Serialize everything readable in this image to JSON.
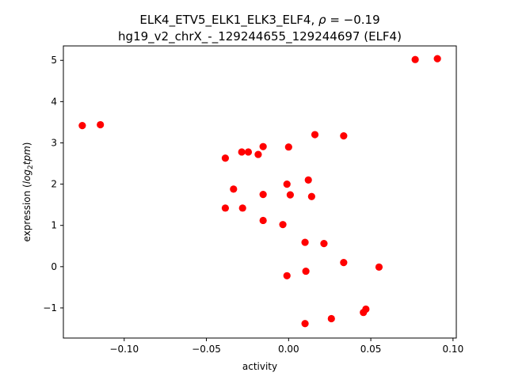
{
  "chart_data": {
    "type": "scatter",
    "title_line1_prefix": "ELK4_ETV5_ELK1_ELK3_ELF4, ",
    "title_rho_symbol": "ρ",
    "title_rho_value": " = −0.19",
    "title_line2": "hg19_v2_chrX_-_129244655_129244697 (ELF4)",
    "xlabel": "activity",
    "ylabel_prefix": "expression (",
    "ylabel_log": "log",
    "ylabel_sub": "2",
    "ylabel_tpm": "tpm",
    "ylabel_suffix": ")",
    "xlim": [
      -0.137,
      0.102
    ],
    "ylim": [
      -1.73,
      5.35
    ],
    "xticks": [
      -0.1,
      -0.05,
      0.0,
      0.05,
      0.1
    ],
    "xtick_labels": [
      "−0.10",
      "−0.05",
      "0.00",
      "0.05",
      "0.10"
    ],
    "yticks": [
      -1,
      0,
      1,
      2,
      3,
      4,
      5
    ],
    "ytick_labels": [
      "−1",
      "0",
      "1",
      "2",
      "3",
      "4",
      "5"
    ],
    "grid": false,
    "marker_color": "#ff0000",
    "points": [
      {
        "x": -0.1255,
        "y": 3.42
      },
      {
        "x": -0.1145,
        "y": 3.44
      },
      {
        "x": -0.0385,
        "y": 2.63
      },
      {
        "x": -0.0385,
        "y": 1.42
      },
      {
        "x": -0.0335,
        "y": 1.88
      },
      {
        "x": -0.0285,
        "y": 2.78
      },
      {
        "x": -0.028,
        "y": 1.42
      },
      {
        "x": -0.0245,
        "y": 2.78
      },
      {
        "x": -0.0185,
        "y": 2.72
      },
      {
        "x": -0.0155,
        "y": 2.91
      },
      {
        "x": -0.0155,
        "y": 1.75
      },
      {
        "x": -0.0155,
        "y": 1.12
      },
      {
        "x": -0.0035,
        "y": 1.02
      },
      {
        "x": -0.001,
        "y": 2.0
      },
      {
        "x": -0.001,
        "y": -0.22
      },
      {
        "x": 0.0,
        "y": 2.9
      },
      {
        "x": 0.001,
        "y": 1.74
      },
      {
        "x": 0.01,
        "y": 0.59
      },
      {
        "x": 0.01,
        "y": -1.38
      },
      {
        "x": 0.0105,
        "y": -0.11
      },
      {
        "x": 0.012,
        "y": 2.1
      },
      {
        "x": 0.014,
        "y": 1.7
      },
      {
        "x": 0.016,
        "y": 3.2
      },
      {
        "x": 0.0215,
        "y": 0.56
      },
      {
        "x": 0.026,
        "y": -1.26
      },
      {
        "x": 0.0335,
        "y": 3.17
      },
      {
        "x": 0.0335,
        "y": 0.1
      },
      {
        "x": 0.0455,
        "y": -1.11
      },
      {
        "x": 0.047,
        "y": -1.03
      },
      {
        "x": 0.055,
        "y": -0.01
      },
      {
        "x": 0.077,
        "y": 5.02
      },
      {
        "x": 0.0905,
        "y": 5.04
      }
    ]
  }
}
